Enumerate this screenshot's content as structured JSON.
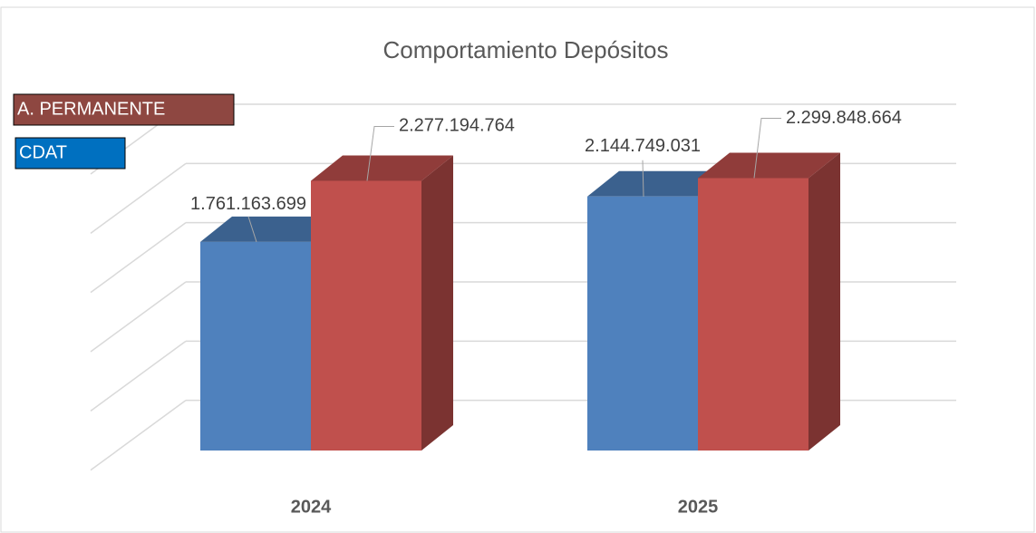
{
  "chart_data": {
    "type": "bar3d",
    "title": "Comportamiento Depósitos",
    "categories": [
      "2024",
      "2025"
    ],
    "series": [
      {
        "name": "CDAT",
        "color": "#4f81bd",
        "values": [
          1761163699,
          2144749031
        ],
        "value_labels": [
          "1.761.163.699",
          "2.144.749.031"
        ]
      },
      {
        "name": "A. PERMANENTE",
        "color": "#c0504d",
        "values": [
          2277194764,
          2299848664
        ],
        "value_labels": [
          "2.277.194.764",
          "2.299.848.664"
        ]
      }
    ],
    "ylim": [
      0,
      3000000000
    ],
    "yticks": [
      500000000,
      1000000000,
      1500000000,
      2000000000,
      2500000000,
      3000000000
    ],
    "grid": true
  }
}
